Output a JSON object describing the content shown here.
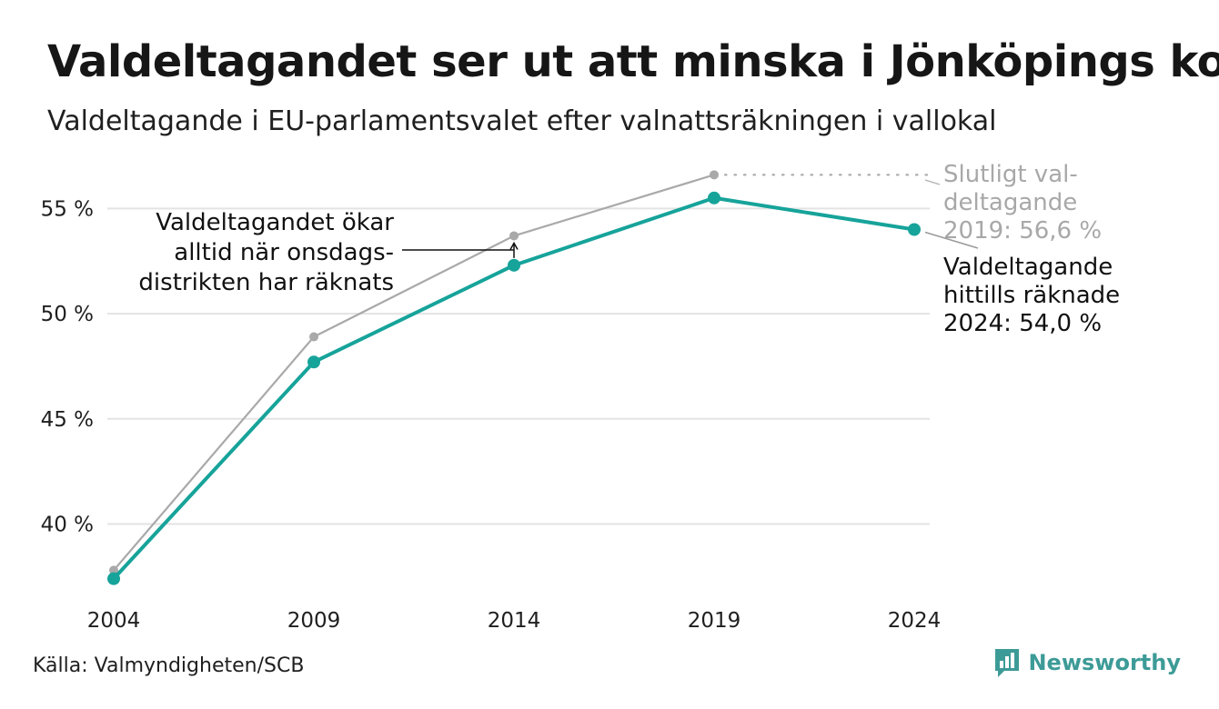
{
  "header": {
    "title": "Valdeltagandet ser ut att minska i Jönköpings kom",
    "subtitle": "Valdeltagande i EU-parlamentsvalet efter valnattsräkningen i vallokal"
  },
  "chart_data": {
    "type": "line",
    "categories": [
      "2004",
      "2009",
      "2014",
      "2019",
      "2024"
    ],
    "series": [
      {
        "key": "final",
        "values": [
          37.8,
          48.9,
          53.7,
          56.6,
          null
        ],
        "color": "#a9a9a9"
      },
      {
        "key": "election_night",
        "values": [
          37.4,
          47.7,
          52.3,
          55.5,
          54.0
        ],
        "color": "#16a39a"
      }
    ],
    "ylim": [
      36.5,
      57.5
    ],
    "yticks": [
      40,
      45,
      50,
      55
    ],
    "ytick_labels": [
      "40 %",
      "45 %",
      "50 %",
      "55 %"
    ],
    "grid": true,
    "annotations": {
      "wednesday": [
        "Valdeltagandet ökar",
        "alltid när onsdags-",
        "distrikten har räknats"
      ],
      "final_2019": [
        "Slutligt val-",
        "deltagande",
        "2019: 56,6 %"
      ],
      "current_2024": [
        "Valdeltagande",
        "hittills räknade",
        "2024: 54,0 %"
      ]
    }
  },
  "footer": {
    "source": "Källa: Valmyndigheten/SCB",
    "logo_text": "Newsworthy",
    "logo_icon": "bar-chart-speech-bubble-icon",
    "logo_color": "#3d9b97"
  }
}
